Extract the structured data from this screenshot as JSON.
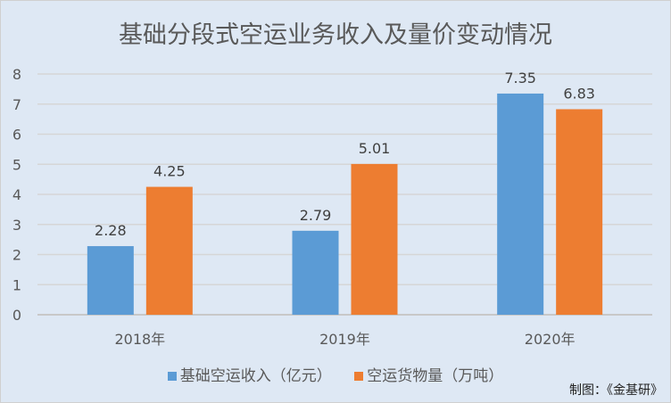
{
  "chart_data": {
    "type": "bar",
    "title": "基础分段式空运业务收入及量价变动情况",
    "categories": [
      "2018年",
      "2019年",
      "2020年"
    ],
    "series": [
      {
        "name": "基础空运收入（亿元）",
        "values": [
          2.28,
          2.79,
          7.35
        ],
        "color": "#5b9bd5"
      },
      {
        "name": "空运货物量（万吨）",
        "values": [
          4.25,
          5.01,
          6.83
        ],
        "color": "#ed7d31"
      }
    ],
    "xlabel": "",
    "ylabel": "",
    "ylim": [
      0,
      8
    ],
    "yticks": [
      0,
      1,
      2,
      3,
      4,
      5,
      6,
      7,
      8
    ],
    "grid": true,
    "legend": "bottom"
  },
  "source": "制图：《金基研》"
}
